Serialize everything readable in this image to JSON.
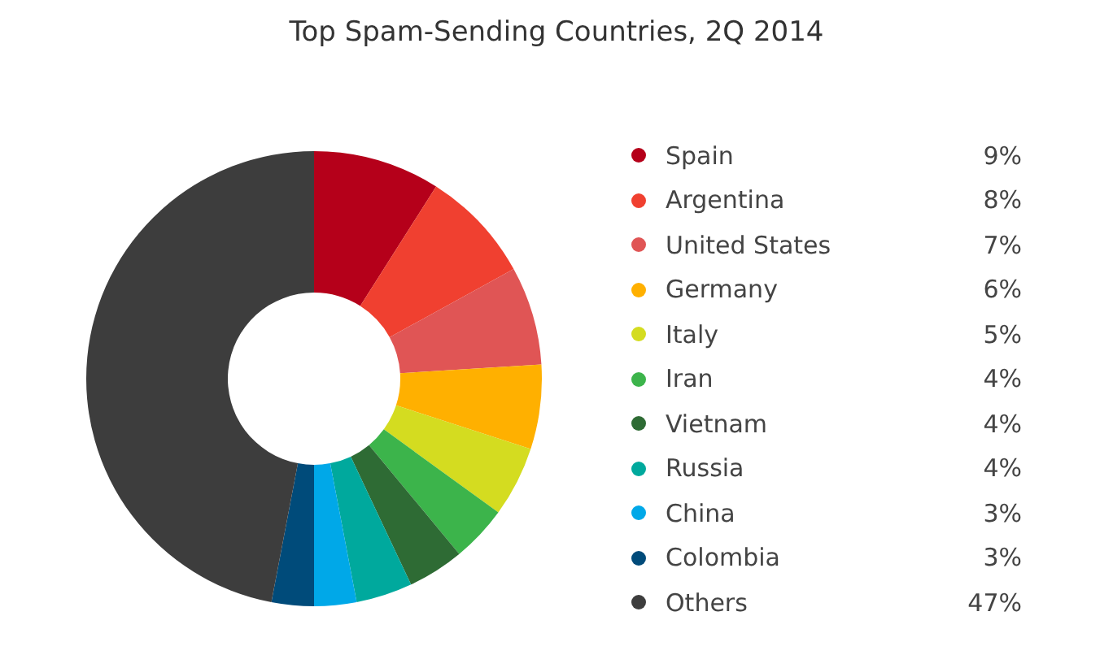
{
  "chart_data": {
    "type": "donut",
    "title": "Top Spam-Sending Countries, 2Q 2014",
    "categories": [
      "Spain",
      "Argentina",
      "United States",
      "Germany",
      "Italy",
      "Iran",
      "Vietnam",
      "Russia",
      "China",
      "Colombia",
      "Others"
    ],
    "values": [
      9,
      8,
      7,
      6,
      5,
      4,
      4,
      4,
      3,
      3,
      47
    ],
    "colors": [
      "#b5001a",
      "#f04030",
      "#e05555",
      "#ffb000",
      "#d4dc20",
      "#3cb44b",
      "#2e6b34",
      "#00a99d",
      "#00a8e8",
      "#004b7a",
      "#3d3d3d"
    ],
    "value_labels": [
      "9%",
      "8%",
      "7%",
      "6%",
      "5%",
      "4%",
      "4%",
      "4%",
      "3%",
      "3%",
      "47%"
    ],
    "legend": "right"
  }
}
